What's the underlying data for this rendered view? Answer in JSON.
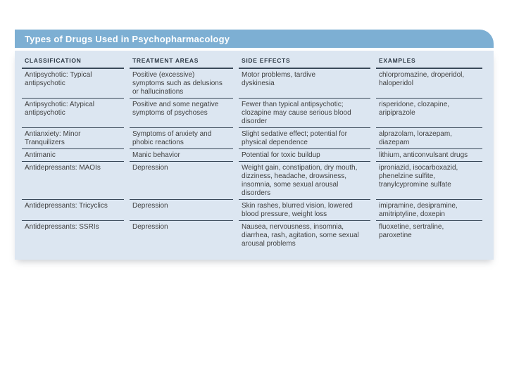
{
  "title_bar": {
    "title": "Types of Drugs Used in Psychopharmacology"
  },
  "colors": {
    "title_bar_bg": "#7dafd3",
    "title_text": "#ffffff",
    "panel_bg": "#dce6f1",
    "rule": "#3a4959",
    "header_text": "#2f3b47",
    "body_text": "#3f3f3f"
  },
  "table": {
    "columns": [
      "CLASSIFICATION",
      "TREATMENT AREAS",
      "SIDE EFFECTS",
      "EXAMPLES"
    ],
    "rows": [
      {
        "cells": [
          "Antipsychotic: Typical\nantipsychotic",
          "Positive (excessive)\nsymptoms such as delusions\nor hallucinations",
          "Motor problems, tardive\ndyskinesia",
          "chlorpromazine, droperidol,\nhaloperidol"
        ]
      },
      {
        "cells": [
          "Antipsychotic: Atypical\nantipsychotic",
          "Positive and some negative\nsymptoms of psychoses",
          "Fewer than typical antipsychotic;\nclozapine may cause serious blood\ndisorder",
          "risperidone, clozapine,\naripiprazole"
        ]
      },
      {
        "cells": [
          "Antianxiety: Minor\nTranquilizers",
          "Symptoms of anxiety and\nphobic reactions",
          "Slight sedative effect; potential for\nphysical dependence",
          "alprazolam, lorazepam,\ndiazepam"
        ]
      },
      {
        "cells": [
          "Antimanic",
          "Manic behavior",
          "Potential for toxic buildup",
          "lithium, anticonvulsant drugs"
        ]
      },
      {
        "cells": [
          "Antidepressants: MAOIs",
          "Depression",
          "Weight gain, constipation, dry mouth,\ndizziness, headache, drowsiness,\ninsomnia, some sexual arousal\ndisorders",
          "iproniazid, isocarboxazid,\nphenelzine sulfite,\ntranylcypromine sulfate"
        ]
      },
      {
        "cells": [
          "Antidepressants: Tricyclics",
          "Depression",
          "Skin rashes, blurred vision, lowered\nblood pressure, weight loss",
          "imipramine, desipramine,\namitriptyline, doxepin"
        ]
      },
      {
        "cells": [
          "Antidepressants: SSRIs",
          "Depression",
          "Nausea, nervousness, insomnia,\ndiarrhea, rash, agitation, some sexual\narousal problems",
          "fluoxetine, sertraline,\nparoxetine"
        ]
      }
    ]
  }
}
